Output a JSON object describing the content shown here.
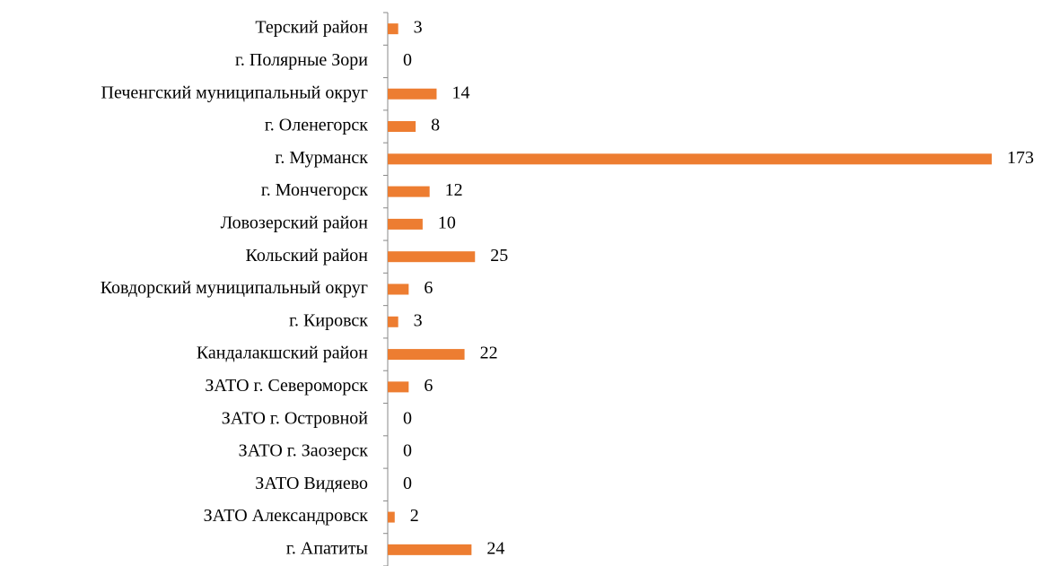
{
  "chart_data": {
    "type": "bar",
    "orientation": "horizontal",
    "categories": [
      "Терский район",
      "г. Полярные Зори",
      "Печенгский муниципальный округ",
      "г. Оленегорск",
      "г. Мурманск",
      "г. Мончегорск",
      "Ловозерский район",
      "Кольский район",
      "Ковдорский муниципальный округ",
      "г. Кировск",
      "Кандалакшский район",
      "ЗАТО г. Североморск",
      "ЗАТО г. Островной",
      "ЗАТО г. Заозерск",
      "ЗАТО Видяево",
      "ЗАТО Александровск",
      "г. Апатиты"
    ],
    "values": [
      3,
      0,
      14,
      8,
      173,
      12,
      10,
      25,
      6,
      3,
      22,
      6,
      0,
      0,
      0,
      2,
      24
    ],
    "color": "#ed7d31"
  }
}
